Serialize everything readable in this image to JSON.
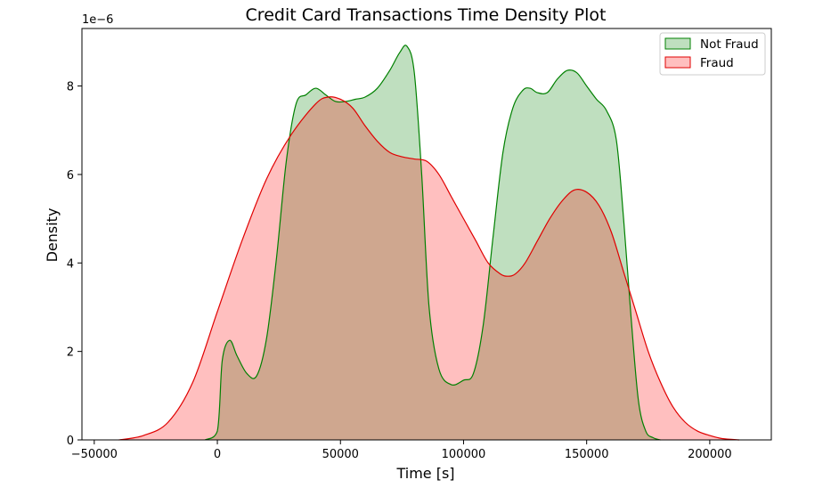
{
  "chart_data": {
    "type": "area",
    "title": "Credit Card Transactions Time Density Plot",
    "xlabel": "Time [s]",
    "ylabel": "Density",
    "y_offset_label": "1e−6",
    "xlim": [
      -55000,
      225000
    ],
    "ylim": [
      0,
      9.3
    ],
    "y_scale_note": "values are in units of 1e-6",
    "xticks": [
      -50000,
      0,
      50000,
      100000,
      150000,
      200000
    ],
    "xtick_labels": [
      "−50000",
      "0",
      "50000",
      "100000",
      "150000",
      "200000"
    ],
    "yticks": [
      0,
      2,
      4,
      6,
      8
    ],
    "ytick_labels": [
      "0",
      "2",
      "4",
      "6",
      "8"
    ],
    "grid": false,
    "legend_position": "top-right",
    "series": [
      {
        "name": "Not Fraud",
        "color": "#008000",
        "fill": "#008000",
        "x": [
          -5000,
          0,
          2000,
          5000,
          8000,
          12000,
          16000,
          20000,
          24000,
          28000,
          32000,
          36000,
          40000,
          44000,
          48000,
          52000,
          56000,
          60000,
          65000,
          70000,
          74000,
          77000,
          80000,
          83000,
          86000,
          90000,
          95000,
          100000,
          104000,
          108000,
          112000,
          116000,
          120000,
          124000,
          127000,
          130000,
          134000,
          138000,
          142000,
          146000,
          150000,
          154000,
          158000,
          162000,
          165000,
          168000,
          171000,
          174000,
          177000,
          180000
        ],
        "values": [
          0.0,
          0.2,
          1.8,
          2.25,
          1.9,
          1.5,
          1.45,
          2.3,
          4.1,
          6.3,
          7.6,
          7.8,
          7.95,
          7.8,
          7.65,
          7.65,
          7.7,
          7.75,
          7.95,
          8.35,
          8.75,
          8.9,
          8.3,
          6.0,
          3.0,
          1.6,
          1.25,
          1.35,
          1.5,
          2.6,
          4.6,
          6.5,
          7.5,
          7.9,
          7.95,
          7.85,
          7.85,
          8.15,
          8.35,
          8.3,
          8.0,
          7.7,
          7.45,
          6.8,
          5.0,
          2.8,
          0.9,
          0.2,
          0.05,
          0.0
        ]
      },
      {
        "name": "Fraud",
        "color": "#e00000",
        "fill": "#ff0000",
        "x": [
          -40000,
          -30000,
          -20000,
          -10000,
          0,
          10000,
          20000,
          30000,
          40000,
          45000,
          50000,
          55000,
          60000,
          65000,
          70000,
          75000,
          80000,
          85000,
          90000,
          95000,
          100000,
          105000,
          110000,
          115000,
          118000,
          121000,
          125000,
          130000,
          135000,
          140000,
          145000,
          150000,
          155000,
          160000,
          165000,
          170000,
          175000,
          180000,
          185000,
          190000,
          195000,
          200000,
          205000,
          212000
        ],
        "values": [
          0.0,
          0.1,
          0.4,
          1.3,
          2.9,
          4.5,
          5.9,
          6.9,
          7.6,
          7.75,
          7.7,
          7.5,
          7.1,
          6.75,
          6.5,
          6.4,
          6.35,
          6.3,
          6.0,
          5.5,
          5.0,
          4.5,
          4.0,
          3.75,
          3.7,
          3.75,
          4.0,
          4.5,
          5.0,
          5.4,
          5.65,
          5.6,
          5.3,
          4.7,
          3.8,
          2.9,
          2.0,
          1.3,
          0.75,
          0.4,
          0.2,
          0.1,
          0.03,
          0.0
        ]
      }
    ]
  }
}
